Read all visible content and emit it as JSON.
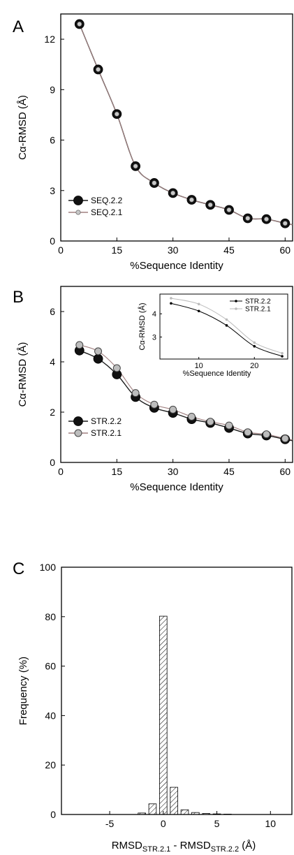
{
  "chart_data": [
    {
      "panel": "A",
      "type": "line",
      "xlabel": "%Sequence Identity",
      "ylabel": "Cα-RMSD (Å)",
      "xlim": [
        0,
        62
      ],
      "ylim": [
        0,
        13.5
      ],
      "xticks": [
        0,
        15,
        30,
        45,
        60
      ],
      "yticks": [
        0,
        3,
        6,
        9,
        12
      ],
      "legend_position": "bottom-left",
      "series": [
        {
          "name": "SEQ.2.2",
          "color": "#1a1a1a",
          "marker": "large-black",
          "x": [
            5,
            10,
            15,
            20,
            25,
            30,
            35,
            40,
            45,
            50,
            55,
            60
          ],
          "y": [
            12.9,
            10.2,
            7.55,
            4.45,
            3.45,
            2.85,
            2.45,
            2.15,
            1.85,
            1.35,
            1.3,
            1.05
          ]
        },
        {
          "name": "SEQ.2.1",
          "color": "#a08080",
          "marker": "small-gray",
          "x": [
            5,
            10,
            15,
            20,
            25,
            30,
            35,
            40,
            45,
            50,
            55,
            60
          ],
          "y": [
            12.9,
            10.2,
            7.55,
            4.45,
            3.45,
            2.85,
            2.45,
            2.15,
            1.85,
            1.35,
            1.3,
            1.05
          ]
        }
      ]
    },
    {
      "panel": "B",
      "type": "line",
      "xlabel": "%Sequence Identity",
      "ylabel": "Cα-RMSD (Å)",
      "xlim": [
        0,
        62
      ],
      "ylim": [
        0,
        7
      ],
      "xticks": [
        0,
        15,
        30,
        45,
        60
      ],
      "yticks": [
        0,
        2,
        4,
        6
      ],
      "legend_position": "bottom-left",
      "series": [
        {
          "name": "STR.2.2",
          "color": "#1a1a1a",
          "marker": "large-black",
          "x": [
            5,
            10,
            15,
            20,
            25,
            30,
            35,
            40,
            45,
            50,
            55,
            60
          ],
          "y": [
            4.45,
            4.12,
            3.5,
            2.6,
            2.17,
            1.97,
            1.72,
            1.57,
            1.37,
            1.15,
            1.07,
            0.92
          ]
        },
        {
          "name": "STR.2.1",
          "color": "#a08080",
          "marker": "large-gray",
          "x": [
            5,
            10,
            15,
            20,
            25,
            30,
            35,
            40,
            45,
            50,
            55,
            60
          ],
          "y": [
            4.67,
            4.42,
            3.75,
            2.76,
            2.3,
            2.1,
            1.82,
            1.62,
            1.47,
            1.2,
            1.12,
            0.95
          ]
        }
      ],
      "inset": {
        "type": "line",
        "xlabel": "%Sequence Identity",
        "ylabel": "Cα-RMSD (Å)",
        "xlim": [
          3,
          26
        ],
        "ylim": [
          2.05,
          4.85
        ],
        "xticks": [
          10,
          20
        ],
        "yticks": [
          3,
          4
        ],
        "legend_position": "top-right",
        "series": [
          {
            "name": "STR.2.2",
            "color": "#000000",
            "x": [
              5,
              10,
              15,
              20,
              25
            ],
            "y": [
              4.45,
              4.12,
              3.5,
              2.6,
              2.17
            ]
          },
          {
            "name": "STR.2.1",
            "color": "#bbbbbb",
            "x": [
              5,
              10,
              15,
              20,
              25
            ],
            "y": [
              4.67,
              4.42,
              3.75,
              2.76,
              2.3
            ]
          }
        ]
      }
    },
    {
      "panel": "C",
      "type": "bar",
      "xlabel": {
        "base": "RMSD",
        "sub1": "STR.2.1",
        "mid": " - RMSD",
        "sub2": "STR.2.2",
        "unit": " (Å)"
      },
      "ylabel": "Frequency (%)",
      "xlim": [
        -9.5,
        12
      ],
      "ylim": [
        0,
        100
      ],
      "xticks": [
        -5,
        0,
        5,
        10
      ],
      "yticks": [
        0,
        20,
        40,
        60,
        80,
        100
      ],
      "bar_width": 0.7,
      "x": [
        -2,
        -1,
        0,
        1,
        2,
        3,
        4,
        5,
        6
      ],
      "values": [
        0.6,
        4.3,
        80.2,
        11.0,
        1.9,
        0.8,
        0.4,
        0.25,
        0.15
      ]
    }
  ]
}
